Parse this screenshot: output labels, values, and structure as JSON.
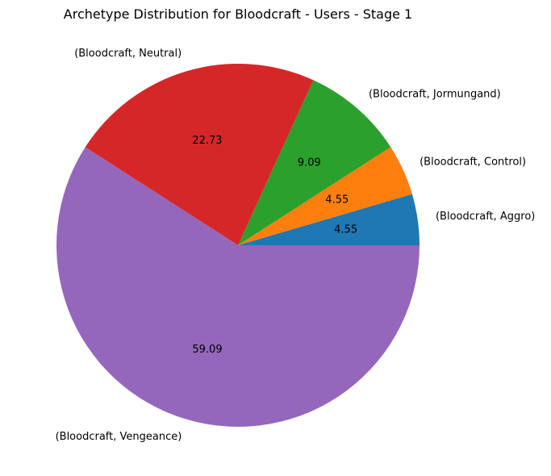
{
  "chart_data": {
    "type": "pie",
    "title": "Archetype Distribution for Bloodcraft - Users - Stage 1",
    "slices": [
      {
        "label": "(Bloodcraft, Aggro)",
        "value": 4.55,
        "pct_label": "4.55",
        "color": "#1f77b4"
      },
      {
        "label": "(Bloodcraft, Control)",
        "value": 4.55,
        "pct_label": "4.55",
        "color": "#ff7f0e"
      },
      {
        "label": "(Bloodcraft, Jormungand)",
        "value": 9.09,
        "pct_label": "9.09",
        "color": "#2ca02c"
      },
      {
        "label": "(Bloodcraft, Neutral)",
        "value": 22.73,
        "pct_label": "22.73",
        "color": "#d62728"
      },
      {
        "label": "(Bloodcraft, Vengeance)",
        "value": 59.09,
        "pct_label": "59.09",
        "color": "#9467bd"
      }
    ],
    "start_angle": "0deg (east), counter-clockwise",
    "legend": "none"
  }
}
